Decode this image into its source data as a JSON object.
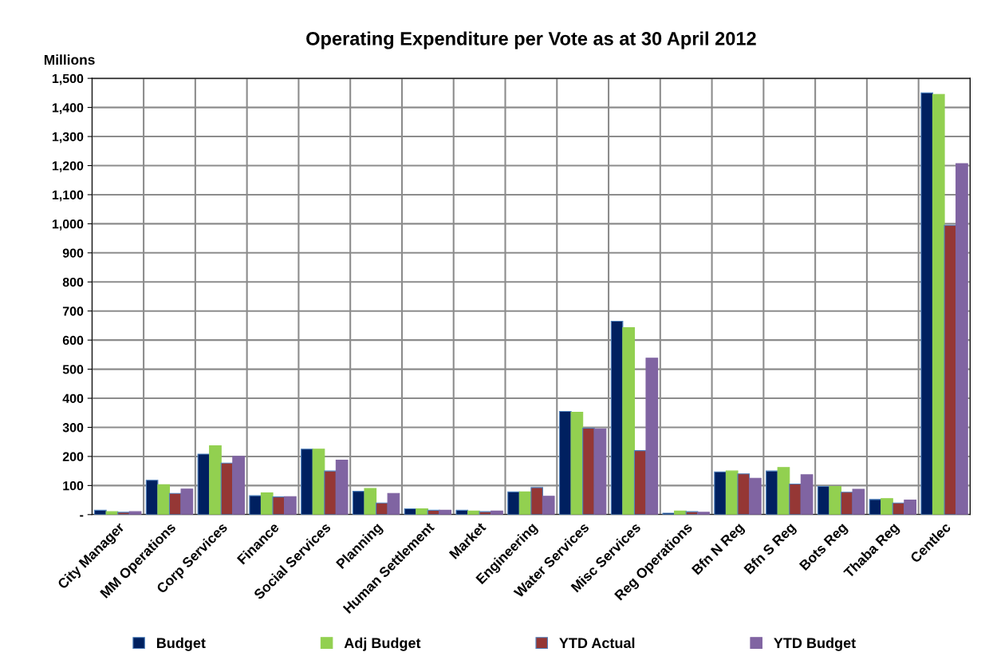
{
  "chart_data": {
    "type": "bar",
    "title": "Operating Expenditure per Vote as at 30 April 2012",
    "ylabel": "Millions",
    "categories": [
      "City Manager",
      "MM Operations",
      "Corp Services",
      "Finance",
      "Social Services",
      "Planning",
      "Human Settlement",
      "Market",
      "Engineering",
      "Water Services",
      "Misc Services",
      "Reg Operations",
      "Bfn N Reg",
      "Bfn S Reg",
      "Bots Reg",
      "Thaba Reg",
      "Centlec"
    ],
    "series": [
      {
        "name": "Budget",
        "color": "#002060",
        "values": [
          15,
          118,
          208,
          65,
          225,
          80,
          20,
          15,
          78,
          355,
          665,
          5,
          147,
          150,
          97,
          52,
          1450
        ]
      },
      {
        "name": "Adj Budget",
        "color": "#92d050",
        "values": [
          10,
          103,
          237,
          75,
          225,
          90,
          20,
          12,
          78,
          352,
          643,
          12,
          150,
          162,
          97,
          55,
          1445
        ]
      },
      {
        "name": "YTD Actual",
        "color": "#953735",
        "values": [
          8,
          73,
          177,
          61,
          150,
          40,
          15,
          10,
          93,
          297,
          220,
          10,
          140,
          105,
          77,
          40,
          995
        ]
      },
      {
        "name": "YTD Budget",
        "color": "#8064a2",
        "values": [
          10,
          88,
          200,
          62,
          187,
          73,
          15,
          12,
          63,
          295,
          538,
          8,
          125,
          137,
          87,
          50,
          1207
        ]
      }
    ],
    "ylim": [
      0,
      1500
    ],
    "yticks": [
      {
        "value": 0,
        "label": "-"
      },
      {
        "value": 100,
        "label": "100"
      },
      {
        "value": 200,
        "label": "200"
      },
      {
        "value": 300,
        "label": "300"
      },
      {
        "value": 400,
        "label": "400"
      },
      {
        "value": 500,
        "label": "500"
      },
      {
        "value": 600,
        "label": "600"
      },
      {
        "value": 700,
        "label": "700"
      },
      {
        "value": 800,
        "label": "800"
      },
      {
        "value": 900,
        "label": "900"
      },
      {
        "value": 1000,
        "label": "1,000"
      },
      {
        "value": 1100,
        "label": "1,100"
      },
      {
        "value": 1200,
        "label": "1,200"
      },
      {
        "value": 1300,
        "label": "1,300"
      },
      {
        "value": 1400,
        "label": "1,400"
      },
      {
        "value": 1500,
        "label": "1,500"
      }
    ],
    "grid": true,
    "legend": "bottom"
  }
}
